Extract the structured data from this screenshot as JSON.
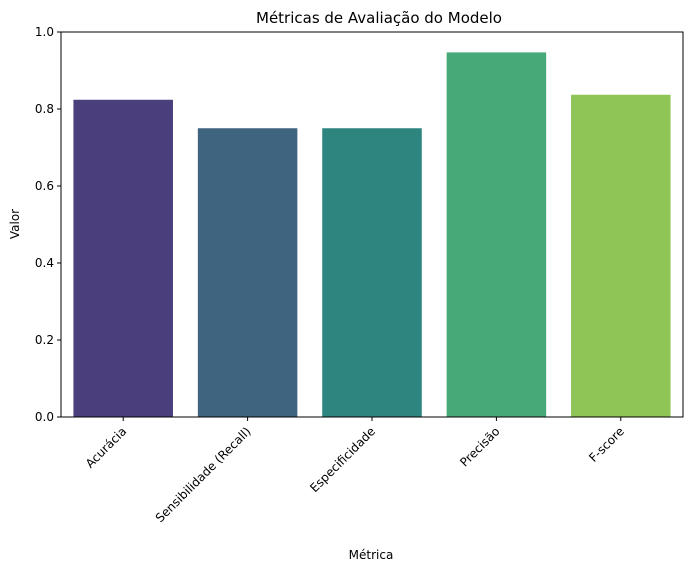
{
  "chart_data": {
    "type": "bar",
    "title": "Métricas de Avaliação do Modelo",
    "xlabel": "Métrica",
    "ylabel": "Valor",
    "categories": [
      "Acurácia",
      "Sensibilidade (Recall)",
      "Especificidade",
      "Precisão",
      "F-score"
    ],
    "values": [
      0.824,
      0.75,
      0.75,
      0.947,
      0.837
    ],
    "colors": [
      "#4a3f7c",
      "#3e6480",
      "#2e847e",
      "#47a977",
      "#8ec556"
    ],
    "ylim": [
      0,
      1
    ],
    "yticks": [
      "0.0",
      "0.2",
      "0.4",
      "0.6",
      "0.8",
      "1.0"
    ],
    "grid": false,
    "legend": "none"
  }
}
